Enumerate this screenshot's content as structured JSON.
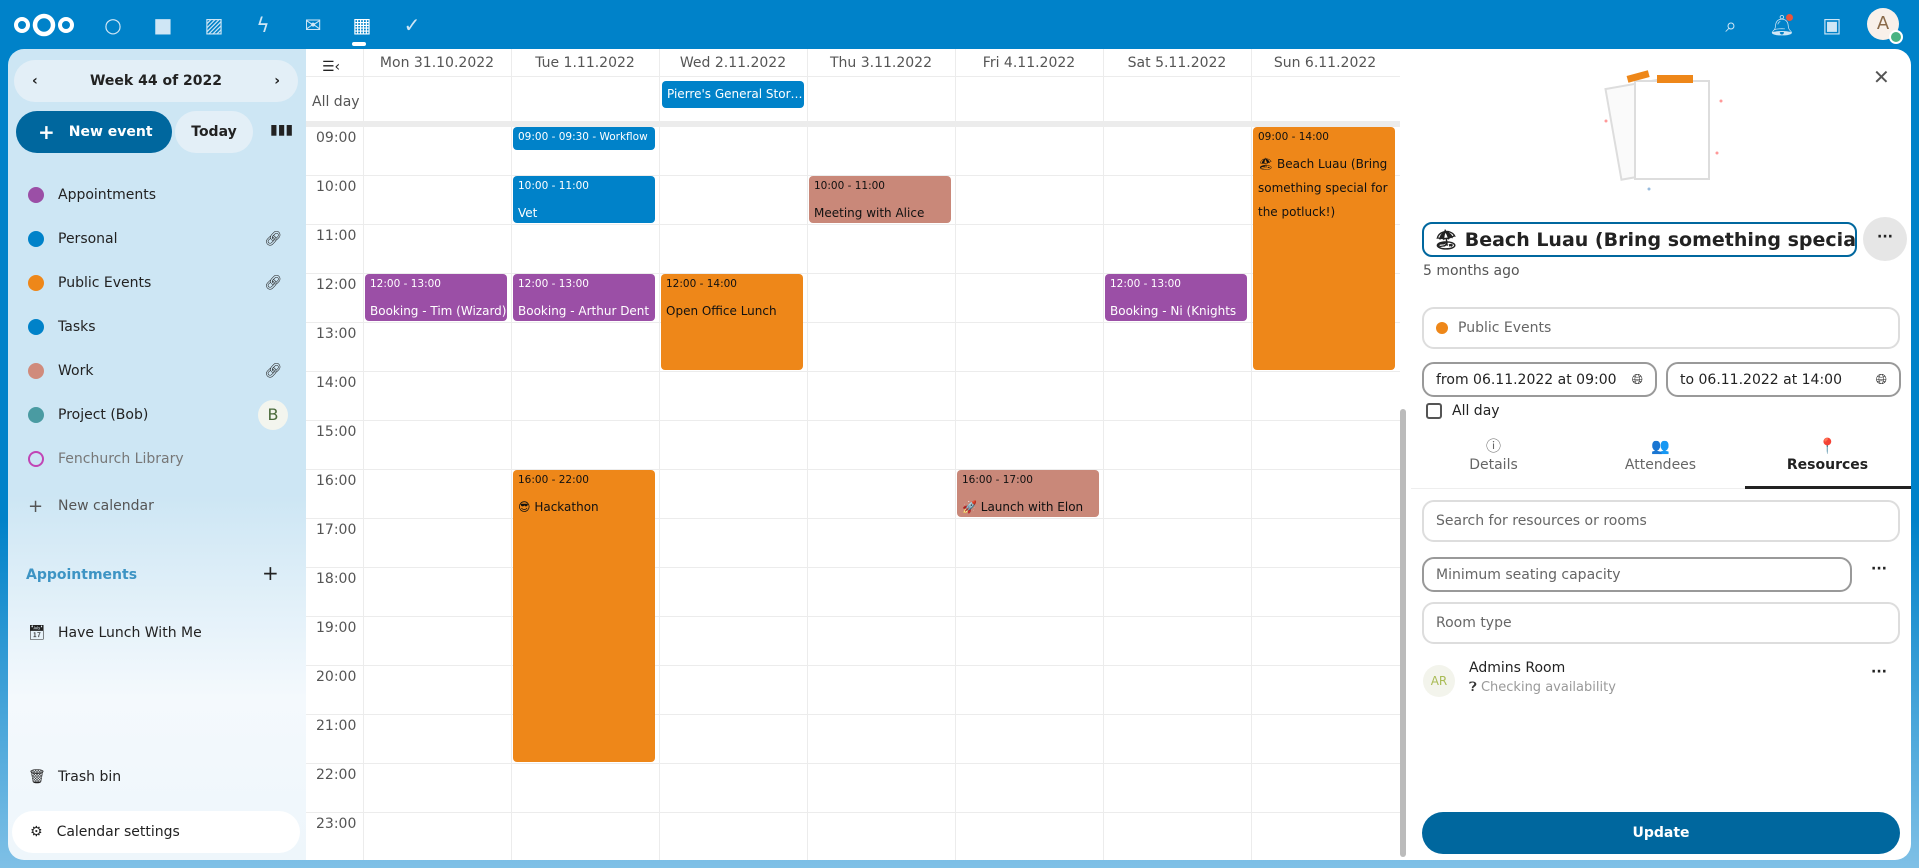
{
  "topbar": {
    "apps": [
      {
        "icon": "dashboard-icon",
        "glyph": "○"
      },
      {
        "icon": "files-icon",
        "glyph": "■"
      },
      {
        "icon": "photos-icon",
        "glyph": "▨"
      },
      {
        "icon": "activity-icon",
        "glyph": "ϟ"
      },
      {
        "icon": "mail-icon",
        "glyph": "✉"
      },
      {
        "icon": "calendar-icon",
        "glyph": "▦"
      },
      {
        "icon": "tasks-icon",
        "glyph": "✓"
      }
    ],
    "avatar_initial": "A"
  },
  "sidebar": {
    "week_label": "Week 44 of 2022",
    "new_event": "New event",
    "today": "Today",
    "calendars": [
      {
        "label": "Appointments",
        "color": "#9b4fa6",
        "action": ""
      },
      {
        "label": "Personal",
        "color": "#0082c9",
        "action": "link"
      },
      {
        "label": "Public Events",
        "color": "#ee8719",
        "action": "link"
      },
      {
        "label": "Tasks",
        "color": "#0082c9",
        "action": ""
      },
      {
        "label": "Work",
        "color": "#d08b7c",
        "action": "link"
      },
      {
        "label": "Project (Bob)",
        "color": "#4a9ba2",
        "action": "avatar",
        "avatar": "B"
      },
      {
        "label": "Fenchurch Library",
        "color": "#c145b5",
        "action": "",
        "disabled": true
      }
    ],
    "new_calendar": "New calendar",
    "appointments_header": "Appointments",
    "appointment_items": [
      "Have Lunch With Me"
    ],
    "trash": "Trash bin",
    "settings": "Calendar settings"
  },
  "calendar": {
    "all_day": "All day",
    "days": [
      "Mon 31.10.2022",
      "Tue 1.11.2022",
      "Wed 2.11.2022",
      "Thu 3.11.2022",
      "Fri 4.11.2022",
      "Sat 5.11.2022",
      "Sun 6.11.2022"
    ],
    "hours": [
      "09:00",
      "10:00",
      "11:00",
      "12:00",
      "13:00",
      "14:00",
      "15:00",
      "16:00",
      "17:00",
      "18:00",
      "19:00",
      "20:00",
      "21:00",
      "22:00",
      "23:00"
    ],
    "allday_events": [
      {
        "day": 2,
        "title": "Pierre's General Stor…",
        "color": "#0082c9"
      }
    ],
    "events": [
      {
        "day": 1,
        "start": 9,
        "end": 9.5,
        "time": "09:00 - 09:30 - Workflow",
        "title": "",
        "color": "#0082c9",
        "text": "#fff"
      },
      {
        "day": 1,
        "start": 10,
        "end": 11,
        "time": "10:00 - 11:00",
        "title": "Vet",
        "color": "#0082c9",
        "text": "#fff"
      },
      {
        "day": 3,
        "start": 10,
        "end": 11,
        "time": "10:00 - 11:00",
        "title": "Meeting with Alice",
        "color": "#c98879",
        "text": "#111"
      },
      {
        "day": 0,
        "start": 12,
        "end": 13,
        "time": "12:00 - 13:00",
        "title": "Booking - Tim (Wizard)",
        "color": "#9b4fa6",
        "text": "#fff"
      },
      {
        "day": 1,
        "start": 12,
        "end": 13,
        "time": "12:00 - 13:00",
        "title": "Booking - Arthur Dent",
        "color": "#9b4fa6",
        "text": "#fff"
      },
      {
        "day": 2,
        "start": 12,
        "end": 14,
        "time": "12:00 - 14:00",
        "title": "Open Office Lunch",
        "color": "#ee8719",
        "text": "#111"
      },
      {
        "day": 5,
        "start": 12,
        "end": 13,
        "time": "12:00 - 13:00",
        "title": "Booking - Ni (Knights",
        "color": "#9b4fa6",
        "text": "#fff"
      },
      {
        "day": 6,
        "start": 9,
        "end": 14,
        "time": "09:00 - 14:00",
        "title": "🏖 Beach Luau (Bring something special for the potluck!)",
        "color": "#ee8719",
        "text": "#111"
      },
      {
        "day": 1,
        "start": 16,
        "end": 22,
        "time": "16:00 - 22:00",
        "title": "😎 Hackathon",
        "color": "#ee8719",
        "text": "#111"
      },
      {
        "day": 4,
        "start": 16,
        "end": 17,
        "time": "16:00 - 17:00",
        "title": "🚀 Launch with Elon",
        "color": "#c98879",
        "text": "#111"
      }
    ]
  },
  "panel": {
    "title": "🏖 Beach Luau (Bring something special for",
    "modified": "5 months ago",
    "calendar": "Public Events",
    "calendar_color": "#ee8719",
    "from": "from 06.11.2022 at 09:00",
    "to": "to 06.11.2022 at 14:00",
    "all_day": "All day",
    "all_day_checked": false,
    "tabs": [
      {
        "label": "Details",
        "icon": "info-icon",
        "glyph": "ⓘ"
      },
      {
        "label": "Attendees",
        "icon": "people-icon",
        "glyph": "👥"
      },
      {
        "label": "Resources",
        "icon": "map-marker-icon",
        "glyph": "📍",
        "active": true
      }
    ],
    "search_placeholder": "Search for resources or rooms",
    "capacity_placeholder": "Minimum seating capacity",
    "room_type_placeholder": "Room type",
    "resources": [
      {
        "initials": "AR",
        "name": "Admins Room",
        "status": "Checking availability"
      }
    ],
    "update": "Update"
  }
}
